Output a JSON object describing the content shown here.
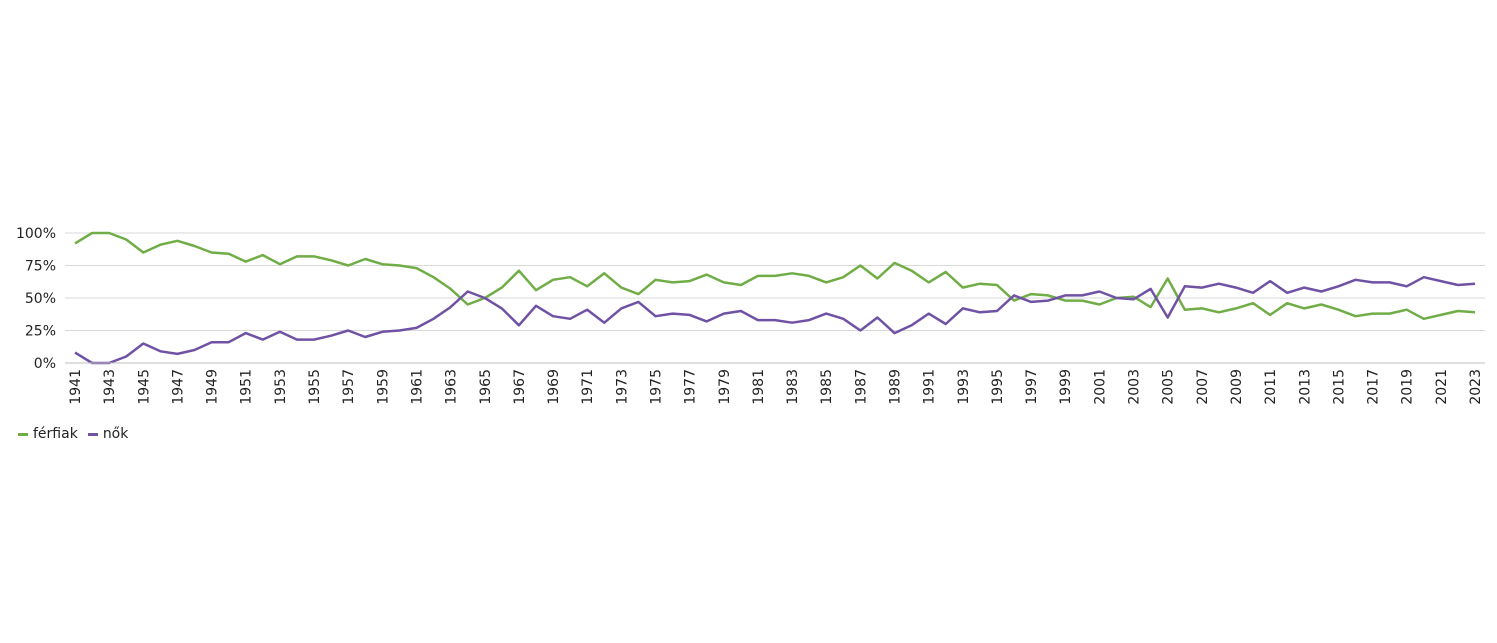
{
  "chart_data": {
    "type": "line",
    "title": "",
    "xlabel": "",
    "ylabel": "",
    "ylim": [
      0,
      100
    ],
    "y_ticks": [
      "0%",
      "25%",
      "50%",
      "75%",
      "100%"
    ],
    "grid": true,
    "legend_position": "bottom-left",
    "x": [
      1941,
      1942,
      1943,
      1944,
      1945,
      1946,
      1947,
      1948,
      1949,
      1950,
      1951,
      1952,
      1953,
      1954,
      1955,
      1956,
      1957,
      1958,
      1959,
      1960,
      1961,
      1962,
      1963,
      1964,
      1965,
      1966,
      1967,
      1968,
      1969,
      1970,
      1971,
      1972,
      1973,
      1974,
      1975,
      1976,
      1977,
      1978,
      1979,
      1980,
      1981,
      1982,
      1983,
      1984,
      1985,
      1986,
      1987,
      1988,
      1989,
      1990,
      1991,
      1992,
      1993,
      1994,
      1995,
      1996,
      1997,
      1998,
      1999,
      2000,
      2001,
      2002,
      2003,
      2004,
      2005,
      2006,
      2007,
      2008,
      2009,
      2010,
      2011,
      2012,
      2013,
      2014,
      2015,
      2016,
      2017,
      2018,
      2019,
      2020,
      2021,
      2022,
      2023
    ],
    "x_tick_labels": [
      "1941",
      "1943",
      "1945",
      "1947",
      "1949",
      "1951",
      "1953",
      "1955",
      "1957",
      "1959",
      "1961",
      "1963",
      "1965",
      "1967",
      "1969",
      "1971",
      "1973",
      "1975",
      "1977",
      "1979",
      "1981",
      "1983",
      "1985",
      "1987",
      "1989",
      "1991",
      "1993",
      "1995",
      "1997",
      "1999",
      "2001",
      "2003",
      "2005",
      "2007",
      "2009",
      "2011",
      "2013",
      "2015",
      "2017",
      "2019",
      "2021",
      "2023"
    ],
    "series": [
      {
        "name": "férfiak",
        "color": "#70ad47",
        "values": [
          92,
          100,
          100,
          95,
          85,
          91,
          94,
          90,
          85,
          84,
          78,
          83,
          76,
          82,
          82,
          79,
          75,
          80,
          76,
          75,
          73,
          66,
          57,
          45,
          50,
          58,
          71,
          56,
          64,
          66,
          59,
          69,
          58,
          53,
          64,
          62,
          63,
          68,
          62,
          60,
          67,
          67,
          69,
          67,
          62,
          66,
          75,
          65,
          77,
          71,
          62,
          70,
          58,
          61,
          60,
          48,
          53,
          52,
          48,
          48,
          45,
          50,
          51,
          43,
          65,
          41,
          42,
          39,
          42,
          46,
          37,
          46,
          42,
          45,
          41,
          36,
          38,
          38,
          41,
          34,
          37,
          40,
          39
        ]
      },
      {
        "name": "nők",
        "color": "#7052a4",
        "values": [
          8,
          0,
          0,
          5,
          15,
          9,
          7,
          10,
          16,
          16,
          23,
          18,
          24,
          18,
          18,
          21,
          25,
          20,
          24,
          25,
          27,
          34,
          43,
          55,
          50,
          42,
          29,
          44,
          36,
          34,
          41,
          31,
          42,
          47,
          36,
          38,
          37,
          32,
          38,
          40,
          33,
          33,
          31,
          33,
          38,
          34,
          25,
          35,
          23,
          29,
          38,
          30,
          42,
          39,
          40,
          52,
          47,
          48,
          52,
          52,
          55,
          50,
          49,
          57,
          35,
          59,
          58,
          61,
          58,
          54,
          63,
          54,
          58,
          55,
          59,
          64,
          62,
          62,
          59,
          66,
          63,
          60,
          61
        ]
      }
    ]
  }
}
